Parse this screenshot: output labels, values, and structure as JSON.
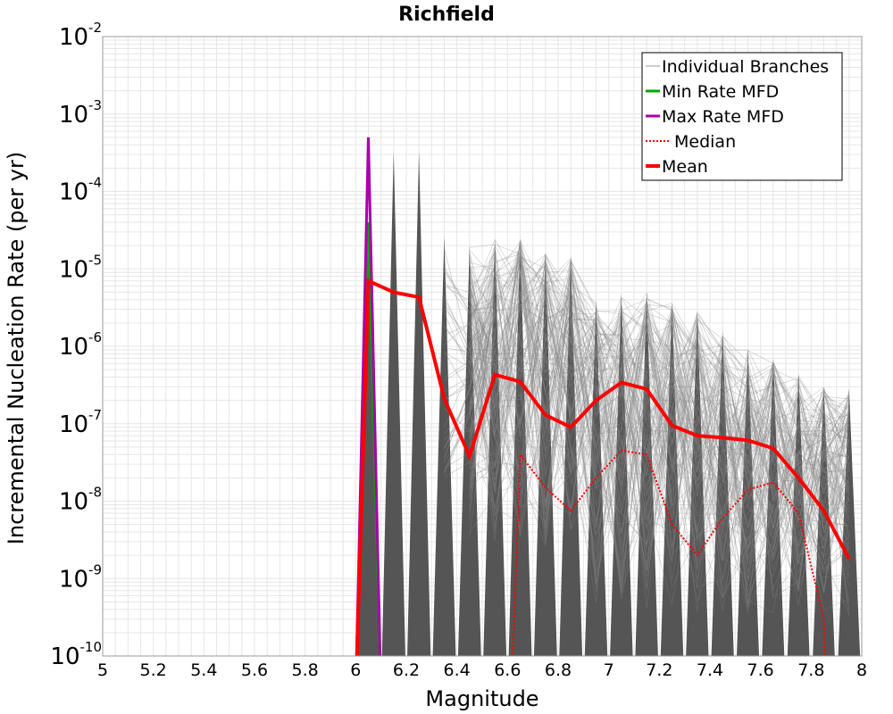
{
  "chart_data": {
    "type": "line",
    "title": "Richfield",
    "xlabel": "Magnitude",
    "ylabel": "Incremental Nucleation Rate (per yr)",
    "xlim": [
      5,
      8
    ],
    "ylim": [
      1e-10,
      0.01
    ],
    "y_scale": "log",
    "grid": true,
    "legend_position": "top-right",
    "x_ticks": [
      "5",
      "5.2",
      "5.4",
      "5.6",
      "5.8",
      "6",
      "6.2",
      "6.4",
      "6.6",
      "6.8",
      "7",
      "7.2",
      "7.4",
      "7.6",
      "7.8",
      "8"
    ],
    "y_ticks": [
      {
        "base": "10",
        "exp": "-10"
      },
      {
        "base": "10",
        "exp": "-9"
      },
      {
        "base": "10",
        "exp": "-8"
      },
      {
        "base": "10",
        "exp": "-7"
      },
      {
        "base": "10",
        "exp": "-6"
      },
      {
        "base": "10",
        "exp": "-5"
      },
      {
        "base": "10",
        "exp": "-4"
      },
      {
        "base": "10",
        "exp": "-3"
      },
      {
        "base": "10",
        "exp": "-2"
      }
    ],
    "colors": {
      "branches": "#555555",
      "min_rate": "#00aa00",
      "max_rate": "#aa00aa",
      "median": "#ff0000",
      "mean": "#ff0000",
      "grid": "#e6e6e6"
    },
    "legend": [
      {
        "label": "Individual Branches",
        "style": "thin-gray"
      },
      {
        "label": "Min Rate MFD",
        "style": "green"
      },
      {
        "label": "Max Rate MFD",
        "style": "purple"
      },
      {
        "label": "Median",
        "style": "dotted-red"
      },
      {
        "label": "Mean",
        "style": "thick-red"
      }
    ],
    "series": [
      {
        "name": "Mean",
        "x": [
          6.05,
          6.15,
          6.25,
          6.35,
          6.45,
          6.55,
          6.65,
          6.75,
          6.85,
          6.95,
          7.05,
          7.15,
          7.25,
          7.35,
          7.45,
          7.55,
          7.65,
          7.75,
          7.85,
          7.95
        ],
        "values": [
          7e-06,
          5e-06,
          4.3e-06,
          2.1e-07,
          3.8e-08,
          4.3e-07,
          3.5e-07,
          1.3e-07,
          9e-08,
          2e-07,
          3.4e-07,
          2.8e-07,
          9.5e-08,
          7e-08,
          6.6e-08,
          6.1e-08,
          4.8e-08,
          2e-08,
          7.5e-09,
          1.8e-09
        ]
      },
      {
        "name": "Median",
        "x": [
          6.65,
          6.75,
          6.85,
          6.95,
          7.05,
          7.15,
          7.25,
          7.35,
          7.45,
          7.55,
          7.65,
          7.75,
          7.85
        ],
        "values": [
          4e-08,
          1.5e-08,
          7.5e-09,
          2e-08,
          4.5e-08,
          4e-08,
          5e-09,
          2e-09,
          6e-09,
          1.4e-08,
          1.75e-08,
          7e-09,
          3e-10
        ]
      },
      {
        "name": "Min Rate MFD",
        "x": [
          6.05
        ],
        "values": [
          4e-05
        ]
      },
      {
        "name": "Max Rate MFD",
        "x": [
          6.05
        ],
        "values": [
          0.0005
        ]
      }
    ],
    "branch_envelope": {
      "bins": [
        6.05,
        6.15,
        6.25,
        6.35,
        6.45,
        6.55,
        6.65,
        6.75,
        6.85,
        6.95,
        7.05,
        7.15,
        7.25,
        7.35,
        7.45,
        7.55,
        7.65,
        7.75,
        7.85,
        7.95
      ],
      "max_values": [
        4e-05,
        0.00033,
        0.00033,
        2.7e-05,
        2e-05,
        2.5e-05,
        2.4e-05,
        1.6e-05,
        1.5e-05,
        4e-06,
        4.8e-06,
        5e-06,
        3.7e-06,
        2.8e-06,
        1.6e-06,
        9e-07,
        7e-07,
        4.5e-07,
        3e-07,
        2.8e-07
      ]
    }
  }
}
